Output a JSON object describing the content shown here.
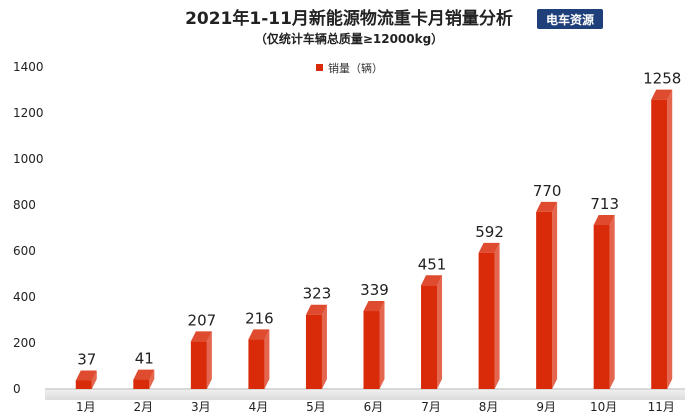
{
  "chart_data": {
    "type": "bar",
    "title": "2021年1-11月新能源物流重卡月销量分析",
    "subtitle": "（仅统计车辆总质量≥12000kg）",
    "categories": [
      "1月",
      "2月",
      "3月",
      "4月",
      "5月",
      "6月",
      "7月",
      "8月",
      "9月",
      "10月",
      "11月"
    ],
    "series": [
      {
        "name": "销量（辆）",
        "values": [
          37,
          41,
          207,
          216,
          323,
          339,
          451,
          592,
          770,
          713,
          1258
        ]
      }
    ],
    "data_labels": [
      "37",
      "41",
      "207",
      "216",
      "323",
      "339",
      "451",
      "592",
      "770",
      "713",
      "1258"
    ],
    "ylim": [
      0,
      1400
    ],
    "yticks": [
      0,
      200,
      400,
      600,
      800,
      1000,
      1200,
      1400
    ],
    "grid": false,
    "legend_position": "top",
    "bar_color": "#d92b0a",
    "xlabel": "",
    "ylabel": ""
  },
  "logo": {
    "text": "电车资源",
    "color": "#1f3f7a"
  }
}
